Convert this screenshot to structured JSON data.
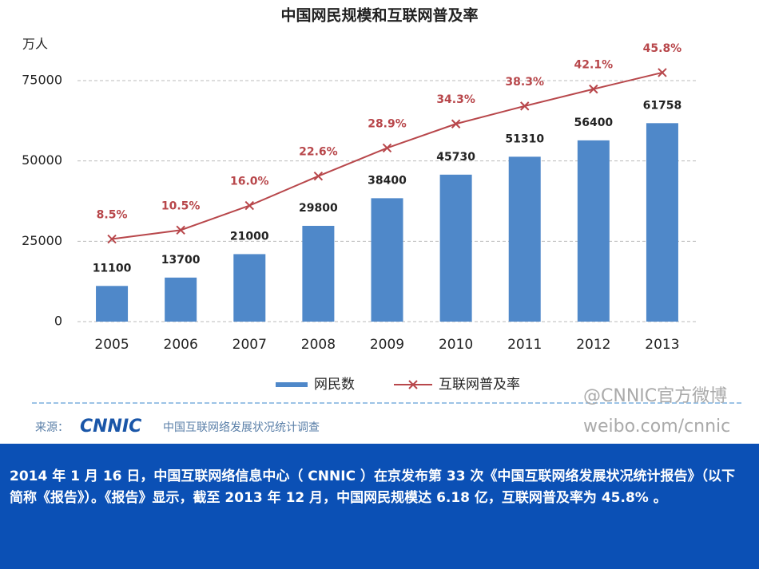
{
  "chart_data": {
    "type": "bar-line",
    "title": "中国网民规模和互联网普及率",
    "y_label": "万人",
    "categories": [
      "2005",
      "2006",
      "2007",
      "2008",
      "2009",
      "2010",
      "2011",
      "2012",
      "2013"
    ],
    "series": [
      {
        "name": "网民数",
        "color": "#4f88c9",
        "values": [
          11100,
          13700,
          21000,
          29800,
          38400,
          45730,
          51310,
          56400,
          61758
        ]
      },
      {
        "name": "互联网普及率",
        "color": "#b8474b",
        "axis": "y2",
        "values": [
          8.5,
          10.5,
          16.0,
          22.6,
          28.9,
          34.3,
          38.3,
          42.1,
          45.8
        ],
        "value_labels": [
          "8.5%",
          "10.5%",
          "16.0%",
          "22.6%",
          "28.9%",
          "34.3%",
          "38.3%",
          "42.1%",
          "45.8%"
        ]
      }
    ],
    "ylim": [
      0,
      75000
    ],
    "yticks": [
      0,
      25000,
      50000,
      75000
    ],
    "y2lim": [
      -10,
      44
    ],
    "grid": true
  },
  "source": {
    "label": "来源：",
    "logo": "CNNIC",
    "text": "中国互联网络发展状况统计调查"
  },
  "watermark": [
    "@CNNIC官方微博",
    "weibo.com/cnnic"
  ],
  "caption": "2014 年 1 月 16 日，中国互联网络信息中心（ CNNIC ）在京发布第 33 次《中国互联网络发展状况统计报告》（以下简称《报告》）。《报告》显示，截至 2013 年 12 月，中国网民规模达 6.18 亿，互联网普及率为 45.8% 。"
}
